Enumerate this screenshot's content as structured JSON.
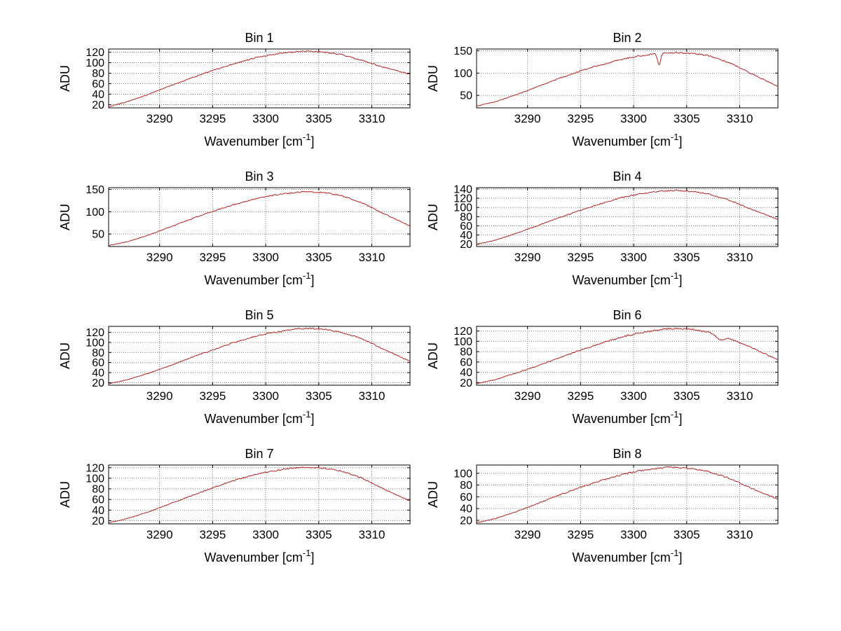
{
  "figure": {
    "background": "#ffffff",
    "line_color": "#b22222",
    "grid_color": "#777777",
    "axis_color": "#000000",
    "ylabel": "ADU",
    "xlabel": {
      "pre": "Wavenumber [cm",
      "sup": "-1",
      "post": "]"
    },
    "xticks": [
      3290,
      3295,
      3300,
      3305,
      3310
    ],
    "xlim": [
      3285.2,
      3313.6
    ],
    "grid": true,
    "legend": "none",
    "x": [
      3285.2,
      3287,
      3289,
      3291,
      3293,
      3295,
      3297,
      3299,
      3300.5,
      3302,
      3303,
      3304,
      3305.5,
      3307,
      3309,
      3311,
      3313.6
    ]
  },
  "chart_data": [
    {
      "type": "line",
      "title": "Bin 1",
      "yticks": [
        20,
        40,
        60,
        80,
        100,
        120
      ],
      "ylim": [
        14,
        126
      ],
      "y": [
        16,
        26,
        40,
        56,
        71,
        85,
        98,
        109,
        115,
        119,
        121,
        122,
        120,
        116,
        105,
        92,
        78
      ],
      "noise_amp": 1.2,
      "dip": null
    },
    {
      "type": "line",
      "title": "Bin 2",
      "yticks": [
        50,
        100,
        150
      ],
      "ylim": [
        22,
        154
      ],
      "y": [
        26,
        36,
        52,
        70,
        88,
        105,
        119,
        132,
        138,
        143,
        145,
        146,
        144,
        139,
        124,
        100,
        70
      ],
      "noise_amp": 1.6,
      "dip": {
        "x": 3302.4,
        "depth": 30,
        "width": 0.3
      }
    },
    {
      "type": "line",
      "title": "Bin 3",
      "yticks": [
        50,
        100,
        150
      ],
      "ylim": [
        22,
        154
      ],
      "y": [
        24,
        33,
        48,
        66,
        84,
        101,
        116,
        129,
        136,
        141,
        144,
        145,
        143,
        137,
        121,
        97,
        68
      ],
      "noise_amp": 1.5,
      "dip": null
    },
    {
      "type": "line",
      "title": "Bin 4",
      "yticks": [
        20,
        40,
        60,
        80,
        100,
        120,
        140
      ],
      "ylim": [
        15,
        143
      ],
      "y": [
        20,
        29,
        44,
        61,
        78,
        94,
        109,
        122,
        129,
        134,
        136,
        137,
        135,
        130,
        116,
        97,
        74
      ],
      "noise_amp": 1.4,
      "dip": null
    },
    {
      "type": "line",
      "title": "Bin 5",
      "yticks": [
        20,
        40,
        60,
        80,
        100,
        120
      ],
      "ylim": [
        15,
        132
      ],
      "y": [
        18,
        26,
        39,
        54,
        70,
        85,
        100,
        112,
        119,
        124,
        127,
        128,
        126,
        121,
        108,
        88,
        62
      ],
      "noise_amp": 1.4,
      "dip": null
    },
    {
      "type": "line",
      "title": "Bin 6",
      "yticks": [
        20,
        40,
        60,
        80,
        100,
        120
      ],
      "ylim": [
        15,
        129
      ],
      "y": [
        18,
        26,
        39,
        53,
        68,
        83,
        97,
        109,
        116,
        121,
        124,
        125,
        123,
        118,
        106,
        89,
        64
      ],
      "noise_amp": 1.5,
      "dip": {
        "x": 3308.2,
        "depth": 8,
        "width": 0.9
      }
    },
    {
      "type": "line",
      "title": "Bin 7",
      "yticks": [
        20,
        40,
        60,
        80,
        100,
        120
      ],
      "ylim": [
        14,
        125
      ],
      "y": [
        16,
        24,
        37,
        52,
        67,
        82,
        96,
        107,
        113,
        118,
        120,
        121,
        119,
        114,
        101,
        81,
        57
      ],
      "noise_amp": 1.3,
      "dip": null
    },
    {
      "type": "line",
      "title": "Bin 8",
      "yticks": [
        20,
        40,
        60,
        80,
        100
      ],
      "ylim": [
        14,
        114
      ],
      "y": [
        16,
        23,
        35,
        49,
        63,
        76,
        88,
        98,
        104,
        108,
        110,
        110,
        108,
        103,
        92,
        75,
        56
      ],
      "noise_amp": 1.3,
      "dip": null
    }
  ]
}
